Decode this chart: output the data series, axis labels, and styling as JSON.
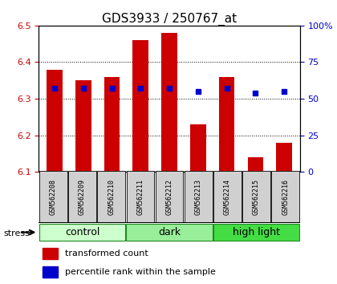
{
  "title": "GDS3933 / 250767_at",
  "samples": [
    "GSM562208",
    "GSM562209",
    "GSM562210",
    "GSM562211",
    "GSM562212",
    "GSM562213",
    "GSM562214",
    "GSM562215",
    "GSM562216"
  ],
  "transformed_counts": [
    6.38,
    6.35,
    6.36,
    6.46,
    6.48,
    6.23,
    6.36,
    6.14,
    6.18
  ],
  "percentile_ranks": [
    57,
    57,
    57,
    57,
    57,
    55,
    57,
    54,
    55
  ],
  "bar_color": "#cc0000",
  "dot_color": "#0000cc",
  "ymin": 6.1,
  "ymax": 6.5,
  "y2min": 0,
  "y2max": 100,
  "yticks": [
    6.1,
    6.2,
    6.3,
    6.4,
    6.5
  ],
  "y2ticks": [
    0,
    25,
    50,
    75,
    100
  ],
  "groups": [
    {
      "label": "control",
      "start": 0,
      "end": 3,
      "color": "#ccffcc"
    },
    {
      "label": "dark",
      "start": 3,
      "end": 6,
      "color": "#99ee99"
    },
    {
      "label": "high light",
      "start": 6,
      "end": 9,
      "color": "#44dd44"
    }
  ],
  "stress_label": "stress",
  "legend_bar_label": "transformed count",
  "legend_dot_label": "percentile rank within the sample",
  "bar_color_legend": "#cc0000",
  "dot_color_legend": "#0000cc",
  "tick_color_left": "#cc0000",
  "tick_color_right": "#0000cc",
  "bar_bottom": 6.1,
  "title_fontsize": 11,
  "axis_fontsize": 8,
  "sample_fontsize": 6,
  "group_fontsize": 9,
  "legend_fontsize": 8
}
